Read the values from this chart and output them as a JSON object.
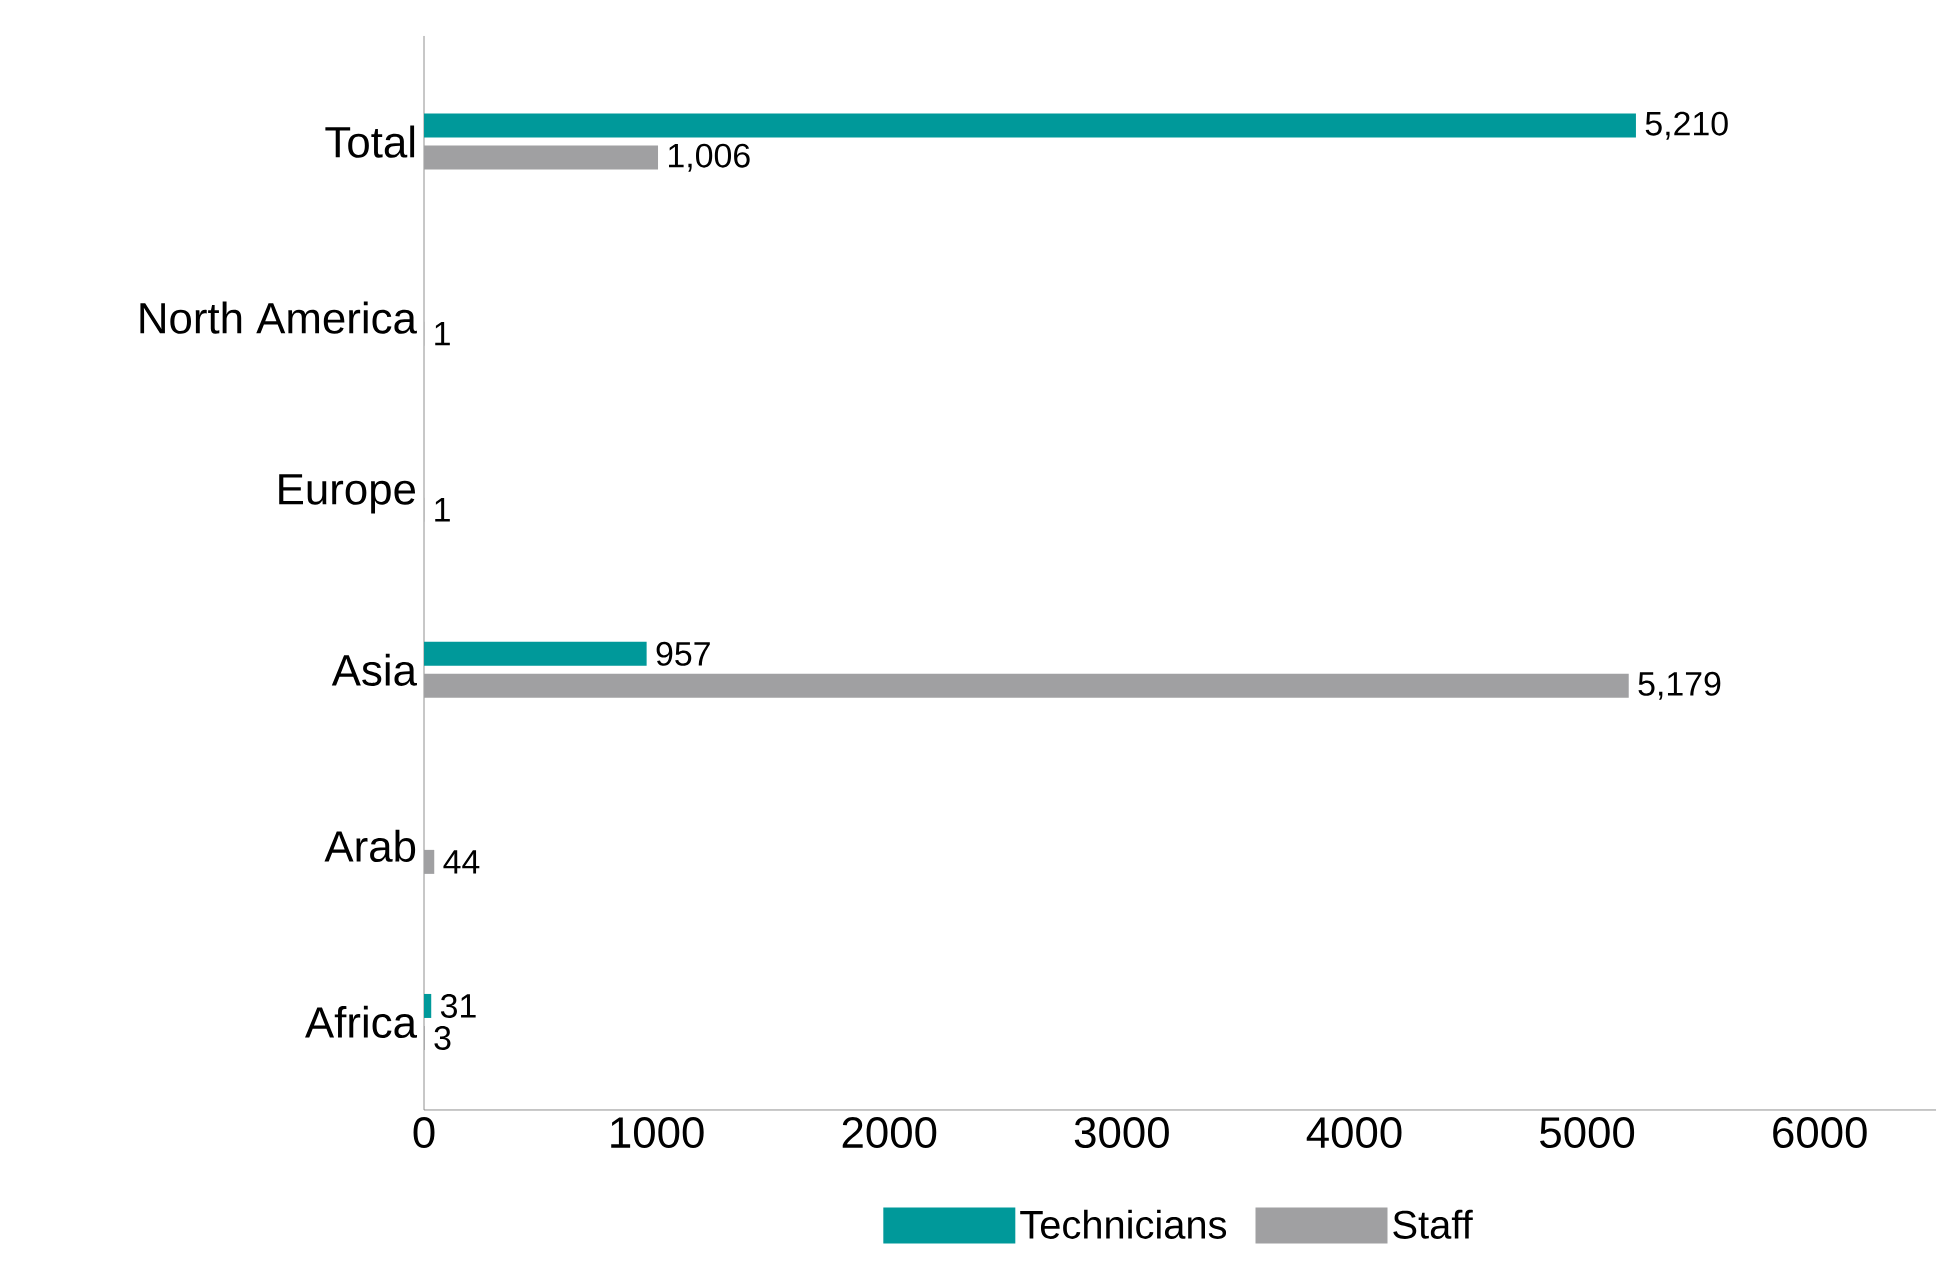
{
  "chart_data": {
    "type": "bar",
    "orientation": "horizontal",
    "categories": [
      "Total",
      "North America",
      "Europe",
      "Asia",
      "Arab",
      "Africa"
    ],
    "series": [
      {
        "name": "Technicians",
        "color": "#00999a",
        "values": [
          5210,
          null,
          null,
          957,
          null,
          31
        ],
        "value_labels": [
          "5,210",
          null,
          null,
          "957",
          null,
          "31"
        ]
      },
      {
        "name": "Staff",
        "color": "#a0a0a2",
        "values": [
          1006,
          1,
          1,
          5179,
          44,
          3
        ],
        "value_labels": [
          "1,006",
          "1",
          "1",
          "5,179",
          "44",
          "3"
        ]
      }
    ],
    "xlim": [
      0,
      6500
    ],
    "xticks": [
      0,
      1000,
      2000,
      3000,
      4000,
      5000,
      6000
    ],
    "legend": "bottom",
    "grid": false
  }
}
